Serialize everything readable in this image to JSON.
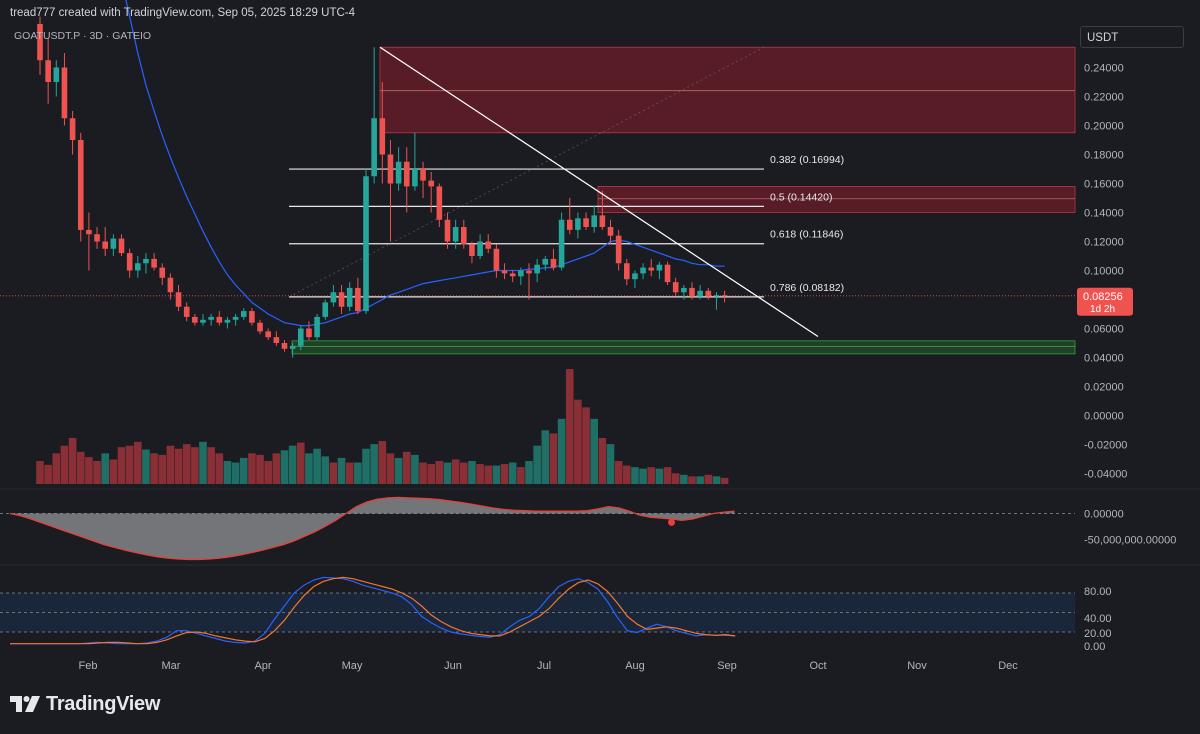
{
  "header": {
    "created": "tread777 created with TradingView.com, Sep 05, 2025 18:29 UTC-4",
    "symbol": "GOATUSDT.P · 3D · GATEIO",
    "currency": "USDT"
  },
  "branding": {
    "logo_text": "TradingView"
  },
  "colors": {
    "bg": "#1a1c22",
    "up": "#26a69a",
    "down": "#ef5350",
    "ma": "#2962ff",
    "supply_zone": "#8b1e2a",
    "demand_zone": "#1f5e28",
    "macd_line": "#e5403a",
    "stoch_k": "#2962ff",
    "stoch_d": "#f0772f"
  },
  "chart_data": {
    "type": "candlestick",
    "symbol": "GOATUSDT.P",
    "timeframe": "3D",
    "exchange": "GATEIO",
    "x_axis_labels": [
      "Feb",
      "Mar",
      "Apr",
      "May",
      "Jun",
      "Jul",
      "Aug",
      "Sep",
      "Oct",
      "Nov",
      "Dec"
    ],
    "price_axis": [
      "0.24000",
      "0.22000",
      "0.20000",
      "0.18000",
      "0.16000",
      "0.14000",
      "0.12000",
      "0.10000",
      "0.06000",
      "0.04000",
      "0.02000",
      "0.00000",
      "-0.02000",
      "-0.04000"
    ],
    "ylim": [
      -0.045,
      0.255
    ],
    "last_price": {
      "value": "0.08256",
      "countdown": "1d 2h"
    },
    "fibonacci_levels": [
      {
        "label": "0.382 (0.16994)",
        "value": 0.16994
      },
      {
        "label": "0.5 (0.14420)",
        "value": 0.1442
      },
      {
        "label": "0.618 (0.11846)",
        "value": 0.11846
      },
      {
        "label": "0.786 (0.08182)",
        "value": 0.08182
      }
    ],
    "zones": [
      {
        "kind": "supply",
        "from": 0.195,
        "to": 0.254,
        "mid": 0.224
      },
      {
        "kind": "supply",
        "from": 0.14,
        "to": 0.158,
        "mid": 0.1495
      },
      {
        "kind": "demand",
        "from": 0.0425,
        "to": 0.0515,
        "mid": 0.0475
      }
    ],
    "trendline": {
      "from_price": 0.254,
      "to_price": 0.0545
    },
    "candles": [
      {
        "o": 0.27,
        "h": 0.275,
        "l": 0.235,
        "c": 0.245
      },
      {
        "o": 0.245,
        "h": 0.26,
        "l": 0.215,
        "c": 0.23
      },
      {
        "o": 0.23,
        "h": 0.245,
        "l": 0.22,
        "c": 0.24
      },
      {
        "o": 0.24,
        "h": 0.25,
        "l": 0.2,
        "c": 0.205
      },
      {
        "o": 0.205,
        "h": 0.21,
        "l": 0.18,
        "c": 0.19
      },
      {
        "o": 0.19,
        "h": 0.195,
        "l": 0.12,
        "c": 0.128
      },
      {
        "o": 0.128,
        "h": 0.14,
        "l": 0.1,
        "c": 0.125
      },
      {
        "o": 0.125,
        "h": 0.13,
        "l": 0.115,
        "c": 0.12
      },
      {
        "o": 0.12,
        "h": 0.13,
        "l": 0.11,
        "c": 0.115
      },
      {
        "o": 0.115,
        "h": 0.125,
        "l": 0.11,
        "c": 0.122
      },
      {
        "o": 0.122,
        "h": 0.125,
        "l": 0.11,
        "c": 0.112
      },
      {
        "o": 0.112,
        "h": 0.115,
        "l": 0.095,
        "c": 0.1
      },
      {
        "o": 0.1,
        "h": 0.11,
        "l": 0.095,
        "c": 0.105
      },
      {
        "o": 0.105,
        "h": 0.112,
        "l": 0.098,
        "c": 0.108
      },
      {
        "o": 0.108,
        "h": 0.112,
        "l": 0.1,
        "c": 0.102
      },
      {
        "o": 0.102,
        "h": 0.105,
        "l": 0.09,
        "c": 0.095
      },
      {
        "o": 0.095,
        "h": 0.098,
        "l": 0.08,
        "c": 0.085
      },
      {
        "o": 0.085,
        "h": 0.09,
        "l": 0.072,
        "c": 0.075
      },
      {
        "o": 0.075,
        "h": 0.078,
        "l": 0.065,
        "c": 0.068
      },
      {
        "o": 0.068,
        "h": 0.07,
        "l": 0.062,
        "c": 0.064
      },
      {
        "o": 0.064,
        "h": 0.07,
        "l": 0.062,
        "c": 0.066
      },
      {
        "o": 0.066,
        "h": 0.07,
        "l": 0.062,
        "c": 0.068
      },
      {
        "o": 0.068,
        "h": 0.072,
        "l": 0.062,
        "c": 0.064
      },
      {
        "o": 0.064,
        "h": 0.068,
        "l": 0.06,
        "c": 0.066
      },
      {
        "o": 0.066,
        "h": 0.07,
        "l": 0.062,
        "c": 0.068
      },
      {
        "o": 0.068,
        "h": 0.074,
        "l": 0.066,
        "c": 0.072
      },
      {
        "o": 0.072,
        "h": 0.074,
        "l": 0.062,
        "c": 0.064
      },
      {
        "o": 0.064,
        "h": 0.066,
        "l": 0.056,
        "c": 0.058
      },
      {
        "o": 0.058,
        "h": 0.06,
        "l": 0.052,
        "c": 0.054
      },
      {
        "o": 0.054,
        "h": 0.058,
        "l": 0.048,
        "c": 0.05
      },
      {
        "o": 0.05,
        "h": 0.052,
        "l": 0.044,
        "c": 0.046
      },
      {
        "o": 0.046,
        "h": 0.05,
        "l": 0.04,
        "c": 0.048
      },
      {
        "o": 0.048,
        "h": 0.062,
        "l": 0.045,
        "c": 0.06
      },
      {
        "o": 0.06,
        "h": 0.065,
        "l": 0.052,
        "c": 0.054
      },
      {
        "o": 0.054,
        "h": 0.07,
        "l": 0.052,
        "c": 0.068
      },
      {
        "o": 0.068,
        "h": 0.08,
        "l": 0.066,
        "c": 0.078
      },
      {
        "o": 0.078,
        "h": 0.09,
        "l": 0.075,
        "c": 0.085
      },
      {
        "o": 0.085,
        "h": 0.09,
        "l": 0.07,
        "c": 0.075
      },
      {
        "o": 0.075,
        "h": 0.092,
        "l": 0.072,
        "c": 0.088
      },
      {
        "o": 0.088,
        "h": 0.095,
        "l": 0.07,
        "c": 0.072
      },
      {
        "o": 0.072,
        "h": 0.17,
        "l": 0.07,
        "c": 0.165
      },
      {
        "o": 0.165,
        "h": 0.254,
        "l": 0.16,
        "c": 0.205
      },
      {
        "o": 0.205,
        "h": 0.23,
        "l": 0.16,
        "c": 0.18
      },
      {
        "o": 0.18,
        "h": 0.19,
        "l": 0.12,
        "c": 0.16
      },
      {
        "o": 0.16,
        "h": 0.185,
        "l": 0.155,
        "c": 0.175
      },
      {
        "o": 0.175,
        "h": 0.185,
        "l": 0.14,
        "c": 0.158
      },
      {
        "o": 0.158,
        "h": 0.195,
        "l": 0.155,
        "c": 0.17
      },
      {
        "o": 0.17,
        "h": 0.175,
        "l": 0.15,
        "c": 0.162
      },
      {
        "o": 0.162,
        "h": 0.168,
        "l": 0.14,
        "c": 0.158
      },
      {
        "o": 0.158,
        "h": 0.16,
        "l": 0.13,
        "c": 0.135
      },
      {
        "o": 0.135,
        "h": 0.14,
        "l": 0.115,
        "c": 0.12
      },
      {
        "o": 0.12,
        "h": 0.135,
        "l": 0.115,
        "c": 0.13
      },
      {
        "o": 0.13,
        "h": 0.135,
        "l": 0.115,
        "c": 0.118
      },
      {
        "o": 0.118,
        "h": 0.12,
        "l": 0.105,
        "c": 0.11
      },
      {
        "o": 0.11,
        "h": 0.125,
        "l": 0.108,
        "c": 0.12
      },
      {
        "o": 0.12,
        "h": 0.125,
        "l": 0.112,
        "c": 0.115
      },
      {
        "o": 0.115,
        "h": 0.118,
        "l": 0.095,
        "c": 0.1
      },
      {
        "o": 0.1,
        "h": 0.105,
        "l": 0.094,
        "c": 0.098
      },
      {
        "o": 0.098,
        "h": 0.1,
        "l": 0.092,
        "c": 0.096
      },
      {
        "o": 0.096,
        "h": 0.102,
        "l": 0.09,
        "c": 0.1
      },
      {
        "o": 0.1,
        "h": 0.105,
        "l": 0.08,
        "c": 0.098
      },
      {
        "o": 0.098,
        "h": 0.108,
        "l": 0.092,
        "c": 0.104
      },
      {
        "o": 0.104,
        "h": 0.11,
        "l": 0.1,
        "c": 0.108
      },
      {
        "o": 0.108,
        "h": 0.115,
        "l": 0.1,
        "c": 0.102
      },
      {
        "o": 0.102,
        "h": 0.14,
        "l": 0.1,
        "c": 0.135
      },
      {
        "o": 0.135,
        "h": 0.15,
        "l": 0.125,
        "c": 0.128
      },
      {
        "o": 0.128,
        "h": 0.14,
        "l": 0.122,
        "c": 0.136
      },
      {
        "o": 0.136,
        "h": 0.14,
        "l": 0.128,
        "c": 0.13
      },
      {
        "o": 0.13,
        "h": 0.145,
        "l": 0.126,
        "c": 0.138
      },
      {
        "o": 0.138,
        "h": 0.155,
        "l": 0.128,
        "c": 0.13
      },
      {
        "o": 0.13,
        "h": 0.135,
        "l": 0.118,
        "c": 0.124
      },
      {
        "o": 0.124,
        "h": 0.128,
        "l": 0.1,
        "c": 0.105
      },
      {
        "o": 0.105,
        "h": 0.108,
        "l": 0.09,
        "c": 0.094
      },
      {
        "o": 0.094,
        "h": 0.1,
        "l": 0.088,
        "c": 0.098
      },
      {
        "o": 0.098,
        "h": 0.105,
        "l": 0.094,
        "c": 0.102
      },
      {
        "o": 0.102,
        "h": 0.108,
        "l": 0.096,
        "c": 0.1
      },
      {
        "o": 0.1,
        "h": 0.106,
        "l": 0.094,
        "c": 0.104
      },
      {
        "o": 0.104,
        "h": 0.106,
        "l": 0.09,
        "c": 0.092
      },
      {
        "o": 0.092,
        "h": 0.095,
        "l": 0.082,
        "c": 0.085
      },
      {
        "o": 0.085,
        "h": 0.09,
        "l": 0.08,
        "c": 0.088
      },
      {
        "o": 0.088,
        "h": 0.092,
        "l": 0.08,
        "c": 0.082
      },
      {
        "o": 0.082,
        "h": 0.09,
        "l": 0.08,
        "c": 0.086
      },
      {
        "o": 0.086,
        "h": 0.088,
        "l": 0.08,
        "c": 0.082
      },
      {
        "o": 0.082,
        "h": 0.085,
        "l": 0.073,
        "c": 0.083
      },
      {
        "o": 0.083,
        "h": 0.086,
        "l": 0.078,
        "c": 0.0826
      }
    ],
    "ma_line": [
      null,
      null,
      null,
      null,
      null,
      null,
      null,
      null,
      null,
      null,
      0.3,
      0.275,
      0.25,
      0.228,
      0.21,
      0.193,
      0.178,
      0.164,
      0.151,
      0.139,
      0.127,
      0.116,
      0.106,
      0.097,
      0.09,
      0.084,
      0.078,
      0.074,
      0.07,
      0.067,
      0.064,
      0.063,
      0.062,
      0.062,
      0.063,
      0.064,
      0.066,
      0.068,
      0.07,
      0.071,
      0.074,
      0.077,
      0.08,
      0.083,
      0.085,
      0.087,
      0.089,
      0.091,
      0.092,
      0.093,
      0.094,
      0.095,
      0.096,
      0.097,
      0.098,
      0.099,
      0.1,
      0.1,
      0.1,
      0.1,
      0.101,
      0.101,
      0.102,
      0.102,
      0.104,
      0.106,
      0.108,
      0.11,
      0.112,
      0.116,
      0.12,
      0.121,
      0.12,
      0.118,
      0.116,
      0.114,
      0.112,
      0.11,
      0.108,
      0.107,
      0.105,
      0.104,
      0.104,
      0.103,
      0.103
    ],
    "volume": [
      30,
      25,
      40,
      50,
      60,
      42,
      35,
      30,
      40,
      32,
      48,
      50,
      55,
      45,
      40,
      38,
      50,
      46,
      52,
      48,
      55,
      48,
      40,
      30,
      28,
      34,
      40,
      38,
      30,
      40,
      44,
      50,
      54,
      40,
      46,
      36,
      28,
      34,
      28,
      28,
      46,
      52,
      56,
      40,
      34,
      42,
      38,
      28,
      26,
      30,
      28,
      32,
      28,
      30,
      26,
      24,
      24,
      26,
      28,
      22,
      30,
      50,
      70,
      66,
      85,
      150,
      110,
      100,
      85,
      60,
      52,
      30,
      24,
      22,
      20,
      22,
      20,
      22,
      14,
      12,
      10,
      10,
      12,
      10,
      8
    ],
    "volume_up": [
      false,
      false,
      false,
      false,
      false,
      false,
      false,
      false,
      true,
      false,
      false,
      false,
      false,
      true,
      false,
      false,
      false,
      false,
      false,
      false,
      true,
      false,
      false,
      true,
      true,
      true,
      false,
      false,
      false,
      false,
      true,
      true,
      false,
      true,
      true,
      true,
      false,
      true,
      false,
      true,
      true,
      true,
      false,
      false,
      true,
      false,
      true,
      false,
      false,
      false,
      true,
      false,
      false,
      true,
      false,
      false,
      true,
      false,
      true,
      false,
      true,
      true,
      true,
      false,
      true,
      false,
      false,
      false,
      true,
      false,
      true,
      false,
      false,
      true,
      true,
      false,
      true,
      false,
      false,
      true,
      false,
      true,
      false,
      true,
      false
    ],
    "macd": {
      "axis": [
        "0.00000",
        "-50,000,000.00000"
      ],
      "values": [
        0,
        -0.05,
        -0.12,
        -0.2,
        -0.28,
        -0.36,
        -0.44,
        -0.52,
        -0.6,
        -0.68,
        -0.74,
        -0.8,
        -0.85,
        -0.9,
        -0.94,
        -0.97,
        -0.99,
        -1.0,
        -1.0,
        -0.99,
        -0.97,
        -0.94,
        -0.9,
        -0.85,
        -0.8,
        -0.74,
        -0.68,
        -0.6,
        -0.5,
        -0.4,
        -0.28,
        -0.15,
        0.0,
        0.15,
        0.25,
        0.31,
        0.34,
        0.35,
        0.34,
        0.33,
        0.32,
        0.3,
        0.27,
        0.24,
        0.2,
        0.16,
        0.12,
        0.09,
        0.07,
        0.06,
        0.05,
        0.05,
        0.05,
        0.05,
        0.05,
        0.06,
        0.1,
        0.15,
        0.12,
        0.05,
        -0.04,
        -0.08,
        -0.1,
        -0.12,
        -0.15,
        -0.12,
        -0.06,
        0.0,
        0.03,
        0.05
      ]
    },
    "stoch": {
      "axis": [
        "80.00",
        "40.00",
        "20.00",
        "0.00"
      ],
      "k": [
        2,
        2,
        2,
        2,
        2,
        2,
        2,
        2,
        3,
        4,
        3,
        2,
        2,
        2,
        3,
        6,
        12,
        22,
        22,
        18,
        14,
        10,
        6,
        4,
        3,
        6,
        18,
        40,
        60,
        80,
        92,
        100,
        104,
        103,
        102,
        98,
        92,
        88,
        84,
        80,
        74,
        62,
        44,
        34,
        26,
        20,
        17,
        15,
        13,
        12,
        16,
        28,
        38,
        44,
        56,
        74,
        90,
        98,
        102,
        96,
        86,
        66,
        42,
        22,
        19,
        26,
        32,
        28,
        22,
        18,
        14,
        16,
        15,
        15,
        14
      ],
      "d": [
        2,
        2,
        2,
        2,
        2,
        2,
        2,
        2,
        2,
        3,
        4,
        4,
        3,
        2,
        2,
        4,
        8,
        14,
        19,
        20,
        18,
        14,
        11,
        8,
        6,
        5,
        10,
        22,
        38,
        58,
        76,
        90,
        98,
        102,
        104,
        102,
        98,
        94,
        90,
        86,
        80,
        72,
        60,
        46,
        36,
        28,
        22,
        18,
        16,
        14,
        14,
        20,
        28,
        36,
        44,
        56,
        72,
        86,
        96,
        100,
        94,
        82,
        64,
        44,
        32,
        24,
        26,
        28,
        26,
        22,
        18,
        16,
        15,
        16,
        14
      ]
    }
  }
}
